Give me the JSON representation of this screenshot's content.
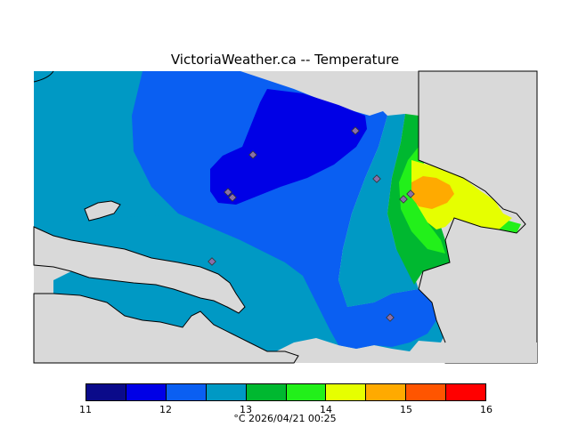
{
  "title": "VictoriaWeather.ca -- Temperature",
  "legend": {
    "colors": [
      "#0a0a8a",
      "#0000e6",
      "#0a5ff2",
      "#0099c4",
      "#00b830",
      "#22f01a",
      "#e6ff00",
      "#ffaa00",
      "#ff5500",
      "#ff0000"
    ],
    "ticks": [
      "11",
      "12",
      "13",
      "14",
      "15",
      "16"
    ]
  },
  "caption": "°C  2026/04/21 00:25",
  "colors": {
    "land_background": "#d9d9d9",
    "water_outline": "#000000",
    "station_marker": "#8a6fa8"
  }
}
